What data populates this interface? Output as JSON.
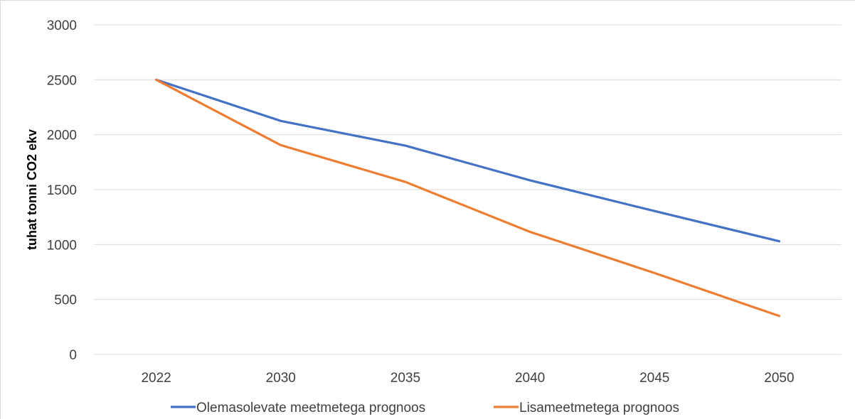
{
  "chart_data": {
    "type": "line",
    "title": "",
    "xlabel": "",
    "ylabel": "tuhat tonni CO2 ekv",
    "ylim": [
      0,
      3000
    ],
    "yticks": [
      "0",
      "500",
      "1000",
      "1500",
      "2000",
      "2500",
      "3000"
    ],
    "categories": [
      "2022",
      "2030",
      "2035",
      "2040",
      "2045",
      "2050"
    ],
    "grid": "horizontal",
    "legend_position": "bottom",
    "series": [
      {
        "name": "Olemasolevate meetmetega prognoos",
        "color": "#4472c4",
        "values": [
          2500,
          2125,
          1900,
          1585,
          1305,
          1030
        ]
      },
      {
        "name": "Lisameetmetega prognoos",
        "color": "#ed7d31",
        "values": [
          2500,
          1905,
          1570,
          1115,
          740,
          350
        ]
      }
    ]
  }
}
